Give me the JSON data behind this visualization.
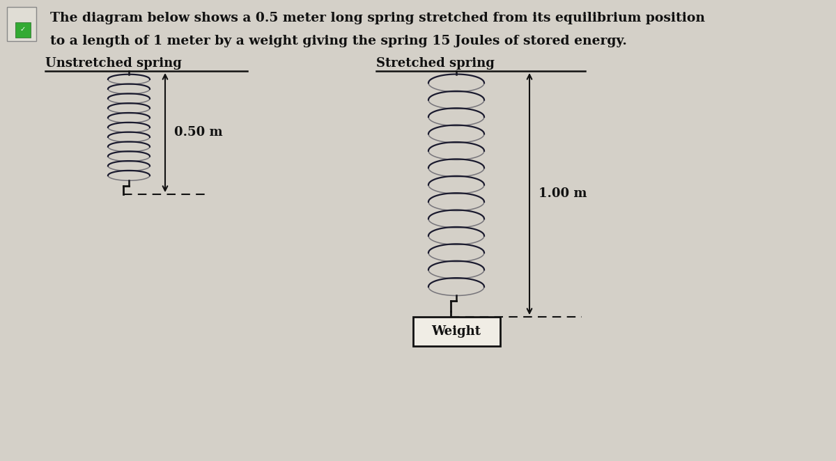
{
  "background_color": "#d4d0c8",
  "title_text1": "The diagram below shows a 0.5 meter long spring stretched from its equilibrium position",
  "title_text2": "to a length of 1 meter by a weight giving the spring 15 Joules of stored energy.",
  "title_fontsize": 13.5,
  "title_color": "#111111",
  "unstretched_label": "Unstretched spring",
  "stretched_label": "Stretched spring",
  "unstretched_measurement": "0.50 m",
  "stretched_measurement": "1.00 m",
  "weight_label": "Weight",
  "label_fontsize": 13,
  "measurement_fontsize": 13,
  "coil_color": "#1a1a2e",
  "line_color": "#111111",
  "weight_bg": "#f0ede5",
  "arrow_color": "#111111"
}
